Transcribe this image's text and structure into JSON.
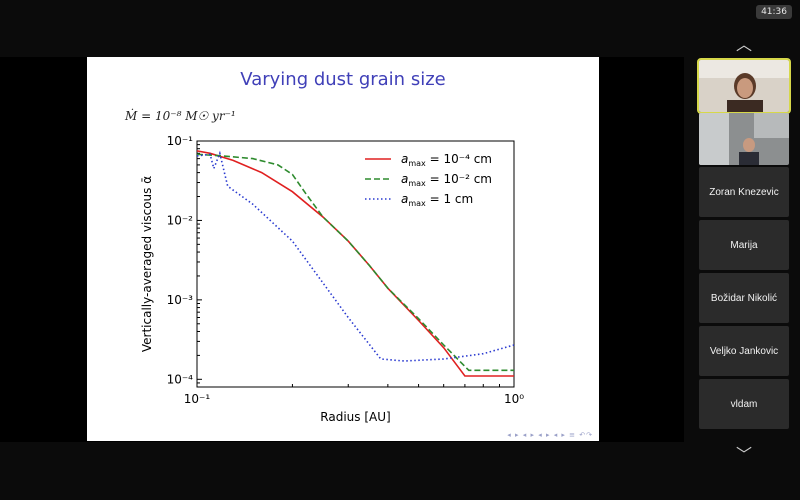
{
  "clock": "41:36",
  "slide": {
    "title": "Varying dust grain size",
    "subtitle": "Ṁ = 10⁻⁸ M☉ yr⁻¹",
    "nav_glyphs": "◂ ▸ ◂ ▸ ◂ ▸ ◂ ▸ ≡ ↶↷"
  },
  "chart_data": {
    "type": "line",
    "xscale": "log",
    "yscale": "log",
    "xlim": [
      0.1,
      1.0
    ],
    "ylim": [
      8e-05,
      0.1
    ],
    "xlabel": "Radius [AU]",
    "ylabel": "Vertically-averaged viscous ᾱ",
    "x_ticks": [
      "10⁻¹",
      "10⁰"
    ],
    "y_ticks": [
      "10⁻⁴",
      "10⁻³",
      "10⁻²",
      "10⁻¹"
    ],
    "legend_position": "top-right",
    "series": [
      {
        "name": "a_max = 10⁻⁴ cm",
        "legend_label": "a",
        "legend_sub": "max",
        "legend_eq": " = 10⁻⁴ cm",
        "color": "#e02020",
        "dash": "solid",
        "points": [
          [
            0.1,
            0.075
          ],
          [
            0.11,
            0.07
          ],
          [
            0.13,
            0.057
          ],
          [
            0.16,
            0.04
          ],
          [
            0.2,
            0.023
          ],
          [
            0.25,
            0.011
          ],
          [
            0.3,
            0.0055
          ],
          [
            0.35,
            0.0027
          ],
          [
            0.4,
            0.0014
          ],
          [
            0.5,
            0.00055
          ],
          [
            0.6,
            0.00025
          ],
          [
            0.7,
            0.00011
          ],
          [
            1.0,
            0.00011
          ]
        ]
      },
      {
        "name": "a_max = 10⁻² cm",
        "legend_label": "a",
        "legend_sub": "max",
        "legend_eq": " = 10⁻² cm",
        "color": "#2e8b2e",
        "dash": "dashed",
        "points": [
          [
            0.1,
            0.068
          ],
          [
            0.12,
            0.065
          ],
          [
            0.15,
            0.06
          ],
          [
            0.18,
            0.05
          ],
          [
            0.2,
            0.038
          ],
          [
            0.22,
            0.022
          ],
          [
            0.25,
            0.011
          ],
          [
            0.3,
            0.0055
          ],
          [
            0.35,
            0.0027
          ],
          [
            0.4,
            0.0014
          ],
          [
            0.5,
            0.00058
          ],
          [
            0.6,
            0.00027
          ],
          [
            0.72,
            0.00013
          ],
          [
            1.0,
            0.00013
          ]
        ]
      },
      {
        "name": "a_max = 1 cm",
        "legend_label": "a",
        "legend_sub": "max",
        "legend_eq": " = 1 cm",
        "color": "#2a3ad0",
        "dash": "dotted",
        "points": [
          [
            0.1,
            0.065
          ],
          [
            0.11,
            0.068
          ],
          [
            0.113,
            0.045
          ],
          [
            0.118,
            0.07
          ],
          [
            0.122,
            0.04
          ],
          [
            0.125,
            0.027
          ],
          [
            0.15,
            0.016
          ],
          [
            0.2,
            0.0055
          ],
          [
            0.3,
            0.0006
          ],
          [
            0.38,
            0.00018
          ],
          [
            0.45,
            0.00017
          ],
          [
            0.6,
            0.00018
          ],
          [
            0.8,
            0.00021
          ],
          [
            1.0,
            0.00027
          ]
        ]
      }
    ]
  },
  "participants": [
    {
      "kind": "video",
      "active": true
    },
    {
      "kind": "video",
      "active": false
    },
    {
      "kind": "name",
      "name": "Zoran Knezevic"
    },
    {
      "kind": "name",
      "name": "Marija"
    },
    {
      "kind": "name",
      "name": "Božidar Nikolić"
    },
    {
      "kind": "name",
      "name": "Veljko Jankovic"
    },
    {
      "kind": "name",
      "name": "vldam"
    }
  ]
}
